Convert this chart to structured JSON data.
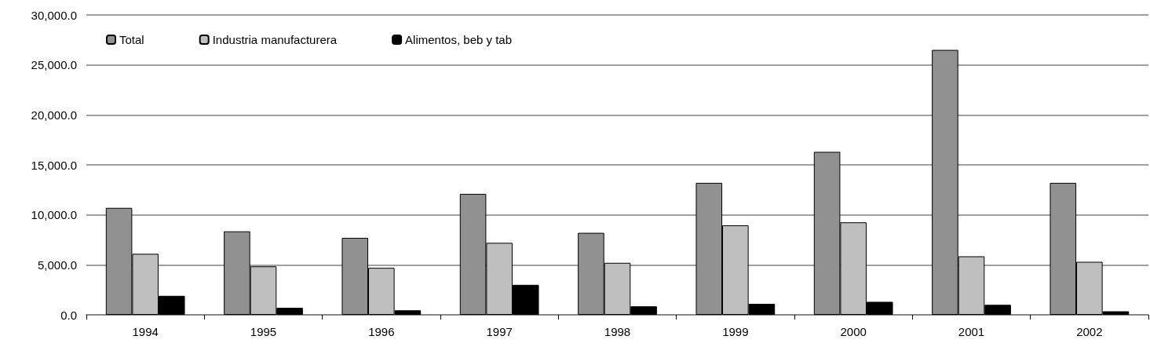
{
  "chart_data": {
    "type": "bar",
    "categories": [
      "1994",
      "1995",
      "1996",
      "1997",
      "1998",
      "1999",
      "2000",
      "2001",
      "2002"
    ],
    "series": [
      {
        "name": "Total",
        "color": "#919191",
        "values": [
          10700,
          8350,
          7700,
          12100,
          8200,
          13200,
          16300,
          26500,
          13200
        ]
      },
      {
        "name": "Industria manufacturera",
        "color": "#bfbfbf",
        "values": [
          6100,
          4850,
          4700,
          7200,
          5200,
          8950,
          9250,
          5850,
          5300
        ]
      },
      {
        "name": "Alimentos, beb y tab",
        "color": "#000000",
        "values": [
          1900,
          700,
          450,
          3000,
          850,
          1100,
          1300,
          1000,
          350
        ]
      }
    ],
    "ylim": [
      0,
      30000
    ],
    "yticks": [
      {
        "value": 0,
        "label": "0.0"
      },
      {
        "value": 5000,
        "label": "5,000.0"
      },
      {
        "value": 10000,
        "label": "10,000.0"
      },
      {
        "value": 15000,
        "label": "15,000.0"
      },
      {
        "value": 20000,
        "label": "20,000.0"
      },
      {
        "value": 25000,
        "label": "25,000.0"
      },
      {
        "value": 30000,
        "label": "30,000.0"
      }
    ],
    "grid": "y",
    "legend": "top left"
  }
}
